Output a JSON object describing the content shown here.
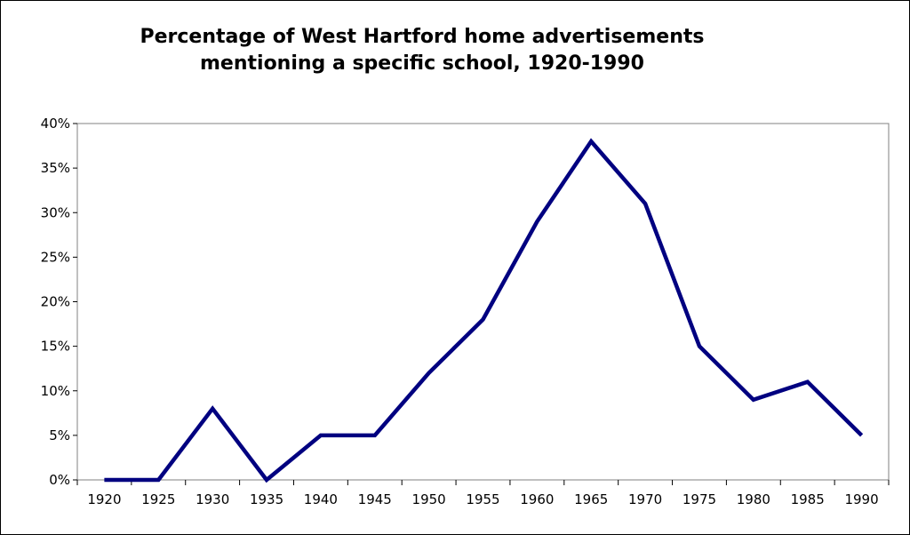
{
  "chart_data": {
    "type": "line",
    "title_lines": [
      "Percentage of West Hartford home advertisements",
      "mentioning a specific school, 1920-1990"
    ],
    "x": [
      "1920",
      "1925",
      "1930",
      "1935",
      "1940",
      "1945",
      "1950",
      "1955",
      "1960",
      "1965",
      "1970",
      "1975",
      "1980",
      "1985",
      "1990"
    ],
    "series": [
      {
        "values": [
          0,
          0,
          8,
          0,
          5,
          5,
          12,
          18,
          29,
          38,
          31,
          15,
          9,
          11,
          5
        ],
        "color": "#000080"
      }
    ],
    "y_ticks": [
      "0%",
      "5%",
      "10%",
      "15%",
      "20%",
      "25%",
      "30%",
      "35%",
      "40%"
    ],
    "ylim": [
      0,
      40
    ],
    "y_unit": "percent",
    "xlabel": "",
    "ylabel": "",
    "grid": false,
    "legend": "none"
  }
}
